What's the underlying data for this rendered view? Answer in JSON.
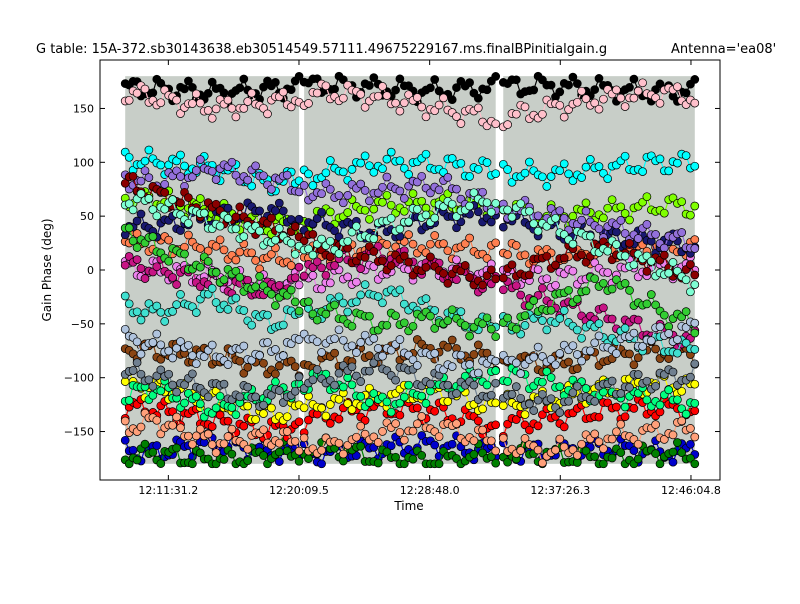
{
  "chart_data": {
    "type": "scatter",
    "title": "G table: 15A-372.sb30143638.eb30514549.57111.49675229167.ms.finalBPinitialgain.g",
    "title_right": "Antenna='ea08'",
    "xlabel": "Time",
    "ylabel": "Gain Phase (deg)",
    "xlim": [
      "12:07:00",
      "12:48:00"
    ],
    "ylim": [
      -195,
      195
    ],
    "x_ticks": [
      "12:11:31.2",
      "12:20:09.5",
      "12:28:48.0",
      "12:37:26.3",
      "12:46:04.8"
    ],
    "y_ticks": [
      150,
      100,
      50,
      0,
      -50,
      -100,
      -150
    ],
    "grid": false,
    "legend": "none",
    "scans": [
      {
        "start": "12:08:40",
        "end": "12:20:10"
      },
      {
        "start": "12:20:30",
        "end": "12:33:10"
      },
      {
        "start": "12:33:40",
        "end": "12:46:20"
      }
    ],
    "series": [
      {
        "color": "#000000",
        "values": [
          170,
          168,
          165,
          168,
          172,
          169,
          166,
          170,
          171,
          168,
          165,
          169
        ]
      },
      {
        "color": "#0000cc",
        "values": [
          -165,
          -170,
          -160,
          -168,
          -172,
          -165,
          -162,
          -170,
          -168,
          -165,
          -170,
          -166
        ]
      },
      {
        "color": "#008000",
        "values": [
          -175,
          -170,
          -178,
          -172,
          -165,
          -175,
          -178,
          -170,
          -172,
          -176,
          -170,
          -174
        ]
      },
      {
        "color": "#ff0000",
        "values": [
          -125,
          -130,
          -140,
          -150,
          -135,
          -128,
          -132,
          -145,
          -138,
          -130,
          -128,
          -135
        ]
      },
      {
        "color": "#ffff00",
        "values": [
          -100,
          -110,
          -120,
          -135,
          -125,
          -118,
          -112,
          -128,
          -120,
          -110,
          -105,
          -115
        ]
      },
      {
        "color": "#00ffff",
        "values": [
          105,
          100,
          95,
          80,
          90,
          100,
          98,
          92,
          88,
          95,
          100,
          98
        ]
      },
      {
        "color": "#7fff00",
        "values": [
          70,
          65,
          55,
          40,
          50,
          60,
          62,
          58,
          50,
          55,
          60,
          58
        ]
      },
      {
        "color": "#ff7f50",
        "values": [
          30,
          25,
          20,
          10,
          15,
          25,
          22,
          18,
          12,
          18,
          22,
          20
        ]
      },
      {
        "color": "#ee82ee",
        "values": [
          5,
          0,
          -5,
          -15,
          -10,
          0,
          2,
          -5,
          -8,
          -2,
          3,
          0
        ]
      },
      {
        "color": "#8b4513",
        "values": [
          -70,
          -75,
          -80,
          -90,
          -85,
          -78,
          -72,
          -82,
          -88,
          -80,
          -75,
          -78
        ]
      },
      {
        "color": "#191970",
        "values": [
          45,
          40,
          50,
          55,
          42,
          35,
          48,
          52,
          38,
          30,
          25,
          20
        ]
      },
      {
        "color": "#c71585",
        "values": [
          10,
          0,
          -10,
          -20,
          5,
          15,
          0,
          -15,
          -30,
          -45,
          -60,
          -70
        ]
      },
      {
        "color": "#40e0d0",
        "values": [
          -30,
          -40,
          -25,
          -50,
          -35,
          -20,
          -40,
          -55,
          -45,
          -60,
          -70,
          -80
        ]
      },
      {
        "color": "#9370db",
        "values": [
          90,
          80,
          95,
          85,
          70,
          75,
          80,
          60,
          50,
          40,
          30,
          20
        ]
      },
      {
        "color": "#00ff7f",
        "values": [
          -120,
          -110,
          -130,
          -115,
          -100,
          -125,
          -110,
          -95,
          -105,
          -115,
          -120,
          -130
        ]
      },
      {
        "color": "#8b0000",
        "values": [
          90,
          70,
          55,
          40,
          20,
          10,
          0,
          -10,
          10,
          20,
          5,
          -15
        ]
      },
      {
        "color": "#32cd32",
        "values": [
          50,
          20,
          0,
          -20,
          -40,
          -50,
          -45,
          -55,
          -30,
          -10,
          -40,
          -60
        ]
      },
      {
        "color": "#7fffd4",
        "values": [
          70,
          60,
          45,
          30,
          20,
          40,
          55,
          65,
          40,
          20,
          0,
          -20
        ]
      },
      {
        "color": "#708090",
        "values": [
          -90,
          -100,
          -110,
          -120,
          -100,
          -90,
          -105,
          -115,
          -125,
          -110,
          -100,
          -95
        ]
      },
      {
        "color": "#b0c4de",
        "values": [
          -60,
          -70,
          -80,
          -75,
          -65,
          -70,
          -85,
          -90,
          -80,
          -70,
          -60,
          -50
        ]
      },
      {
        "color": "#ffa07a",
        "values": [
          -150,
          -140,
          -160,
          -155,
          -165,
          -150,
          -145,
          -160,
          -170,
          -155,
          -150,
          -145
        ]
      },
      {
        "color": "#ffc0cb",
        "values": [
          170,
          160,
          150,
          155,
          165,
          160,
          150,
          140,
          150,
          160,
          165,
          155
        ]
      }
    ]
  }
}
